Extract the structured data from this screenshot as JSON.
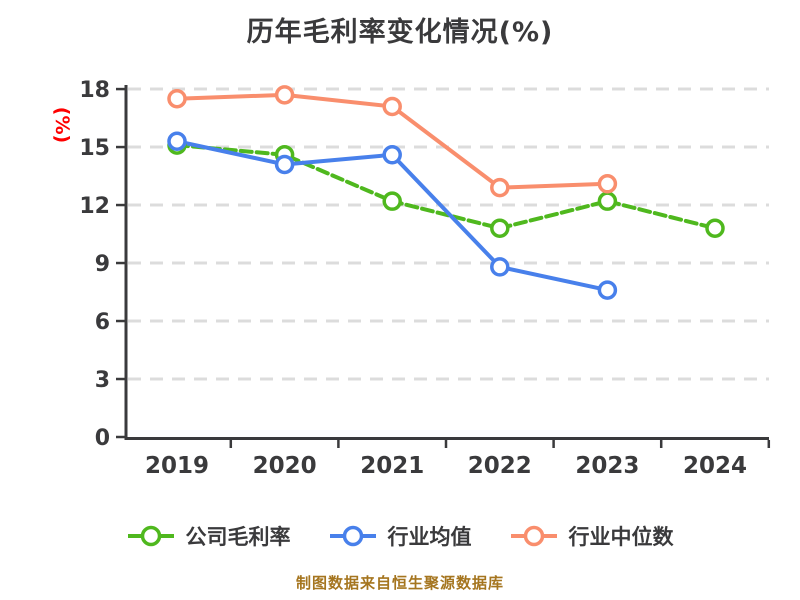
{
  "title": "历年毛利率变化情况(%)",
  "footer": "制图数据来自恒生聚源数据库",
  "colors": {
    "background": "#ffffff",
    "text": "#3a3a3c",
    "axis": "#3a3a3c",
    "grid": "#dcdcdc",
    "ylabel_red": "#fe0000",
    "footer_text": "#a5751f",
    "marker_fill": "#ffffff"
  },
  "chart_data": {
    "type": "line",
    "title": "历年毛利率变化情况(%)",
    "ylabel": "(%)",
    "xlabel": "",
    "categories": [
      "2019",
      "2020",
      "2021",
      "2022",
      "2023",
      "2024"
    ],
    "yticks": [
      0,
      3,
      6,
      9,
      12,
      15,
      18
    ],
    "ylim": [
      0,
      18
    ],
    "grid": "horizontal-dashed",
    "legend_position": "bottom",
    "series": [
      {
        "name": "公司毛利率",
        "color": "#4fb81e",
        "line_style": "dashed",
        "marker": "circle-white-fill",
        "values": [
          15.1,
          14.6,
          12.2,
          10.8,
          12.2,
          10.8
        ]
      },
      {
        "name": "行业均值",
        "color": "#4880eb",
        "line_style": "solid",
        "marker": "circle-white-fill",
        "values": [
          15.3,
          14.1,
          14.6,
          8.8,
          7.6,
          null
        ]
      },
      {
        "name": "行业中位数",
        "color": "#f98e6d",
        "line_style": "solid",
        "marker": "circle-white-fill",
        "values": [
          17.5,
          17.7,
          17.1,
          12.9,
          13.1,
          null
        ]
      }
    ]
  }
}
